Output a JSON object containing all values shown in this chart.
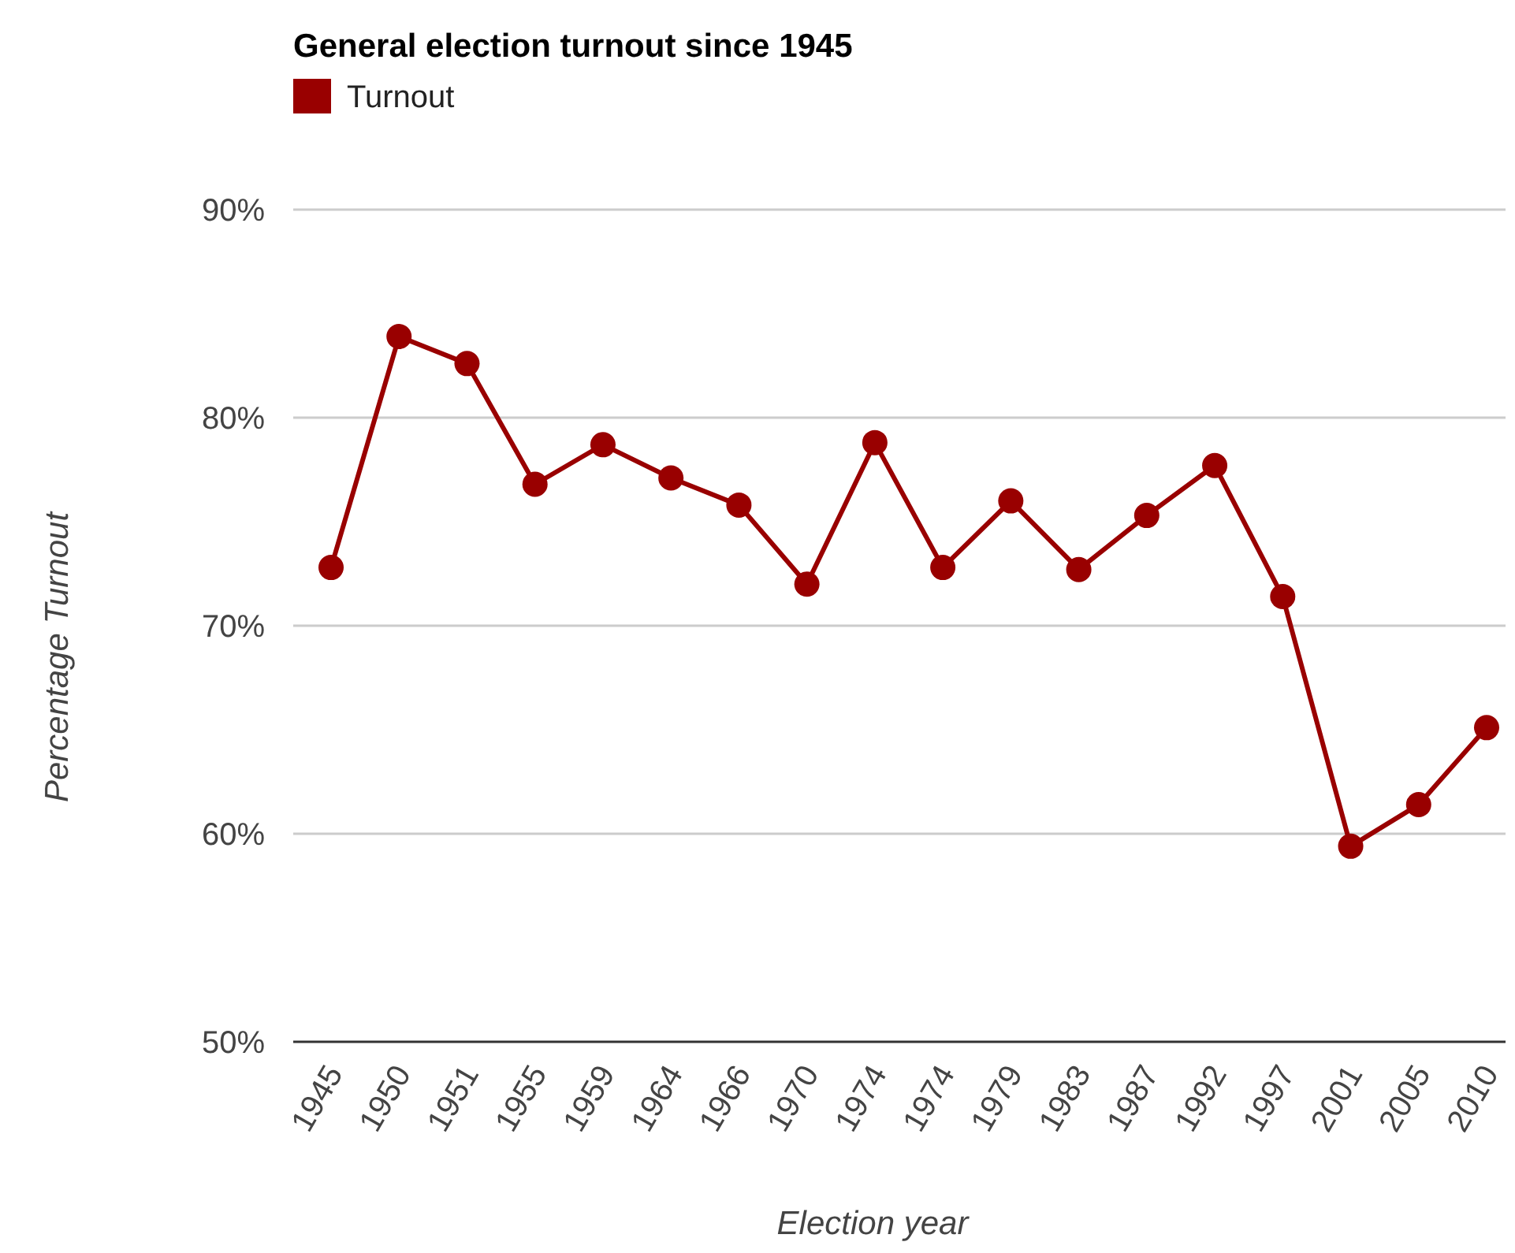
{
  "chart_data": {
    "type": "line",
    "title": "General election turnout since 1945",
    "xlabel": "Election year",
    "ylabel": "Percentage Turnout",
    "categories": [
      "1945",
      "1950",
      "1951",
      "1955",
      "1959",
      "1964",
      "1966",
      "1970",
      "1974",
      "1974",
      "1979",
      "1983",
      "1987",
      "1992",
      "1997",
      "2001",
      "2005",
      "2010"
    ],
    "series": [
      {
        "name": "Turnout",
        "color": "#990000",
        "values": [
          72.8,
          83.9,
          82.6,
          76.8,
          78.7,
          77.1,
          75.8,
          72.0,
          78.8,
          72.8,
          76.0,
          72.7,
          75.3,
          77.7,
          71.4,
          59.4,
          61.4,
          65.1
        ]
      }
    ],
    "ylim": [
      50,
      90
    ],
    "yticks": [
      {
        "value": 50,
        "label": "50%"
      },
      {
        "value": 60,
        "label": "60%"
      },
      {
        "value": 70,
        "label": "70%"
      },
      {
        "value": 80,
        "label": "80%"
      },
      {
        "value": 90,
        "label": "90%"
      }
    ],
    "grid": "y",
    "legend": "top left",
    "marker": "circle",
    "line_style": "solid"
  }
}
